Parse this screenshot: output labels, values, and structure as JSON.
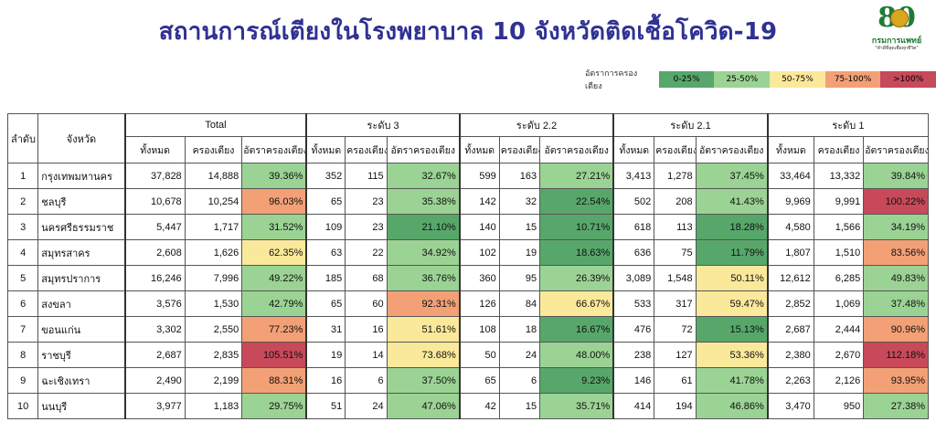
{
  "title": "สถานการณ์เตียงในโรงพยาบาล 10 จังหวัดติดเชื้อโควิด-19",
  "logo": {
    "numeral": "80",
    "name": "กรมการแพทย์",
    "tagline": "\"ทำดีที่สุดเพื่อทุกชีวิต\""
  },
  "legend": {
    "label": "อัตราการครองเตียง",
    "items": [
      {
        "label": "0-25%",
        "color": "#57a76b"
      },
      {
        "label": "25-50%",
        "color": "#9bd394"
      },
      {
        "label": "50-75%",
        "color": "#fbe99b"
      },
      {
        "label": "75-100%",
        "color": "#f3a076"
      },
      {
        "label": ">100%",
        "color": "#c7495a"
      }
    ]
  },
  "table": {
    "headers": {
      "rank": "ลำดับ",
      "province": "จังหวัด",
      "groups": [
        "Total",
        "ระดับ 3",
        "ระดับ 2.2",
        "ระดับ 2.1",
        "ระดับ 1"
      ],
      "sub": [
        "ทั้งหมด",
        "ครองเตียง",
        "อัตราครองเตียง"
      ]
    },
    "rows": [
      {
        "rank": "1",
        "province": "กรุงเทพมหานคร",
        "cells": [
          [
            "37,828",
            "14,888",
            "39.36%"
          ],
          [
            "352",
            "115",
            "32.67%"
          ],
          [
            "599",
            "163",
            "27.21%"
          ],
          [
            "3,413",
            "1,278",
            "37.45%"
          ],
          [
            "33,464",
            "13,332",
            "39.84%"
          ]
        ]
      },
      {
        "rank": "2",
        "province": "ชลบุรี",
        "cells": [
          [
            "10,678",
            "10,254",
            "96.03%"
          ],
          [
            "65",
            "23",
            "35.38%"
          ],
          [
            "142",
            "32",
            "22.54%"
          ],
          [
            "502",
            "208",
            "41.43%"
          ],
          [
            "9,969",
            "9,991",
            "100.22%"
          ]
        ]
      },
      {
        "rank": "3",
        "province": "นครศรีธรรมราช",
        "cells": [
          [
            "5,447",
            "1,717",
            "31.52%"
          ],
          [
            "109",
            "23",
            "21.10%"
          ],
          [
            "140",
            "15",
            "10.71%"
          ],
          [
            "618",
            "113",
            "18.28%"
          ],
          [
            "4,580",
            "1,566",
            "34.19%"
          ]
        ]
      },
      {
        "rank": "4",
        "province": "สมุทรสาคร",
        "cells": [
          [
            "2,608",
            "1,626",
            "62.35%"
          ],
          [
            "63",
            "22",
            "34.92%"
          ],
          [
            "102",
            "19",
            "18.63%"
          ],
          [
            "636",
            "75",
            "11.79%"
          ],
          [
            "1,807",
            "1,510",
            "83.56%"
          ]
        ]
      },
      {
        "rank": "5",
        "province": "สมุทรปราการ",
        "cells": [
          [
            "16,246",
            "7,996",
            "49.22%"
          ],
          [
            "185",
            "68",
            "36.76%"
          ],
          [
            "360",
            "95",
            "26.39%"
          ],
          [
            "3,089",
            "1,548",
            "50.11%"
          ],
          [
            "12,612",
            "6,285",
            "49.83%"
          ]
        ]
      },
      {
        "rank": "6",
        "province": "สงขลา",
        "cells": [
          [
            "3,576",
            "1,530",
            "42.79%"
          ],
          [
            "65",
            "60",
            "92.31%"
          ],
          [
            "126",
            "84",
            "66.67%"
          ],
          [
            "533",
            "317",
            "59.47%"
          ],
          [
            "2,852",
            "1,069",
            "37.48%"
          ]
        ]
      },
      {
        "rank": "7",
        "province": "ขอนแก่น",
        "cells": [
          [
            "3,302",
            "2,550",
            "77.23%"
          ],
          [
            "31",
            "16",
            "51.61%"
          ],
          [
            "108",
            "18",
            "16.67%"
          ],
          [
            "476",
            "72",
            "15.13%"
          ],
          [
            "2,687",
            "2,444",
            "90.96%"
          ]
        ]
      },
      {
        "rank": "8",
        "province": "ราชบุรี",
        "cells": [
          [
            "2,687",
            "2,835",
            "105.51%"
          ],
          [
            "19",
            "14",
            "73.68%"
          ],
          [
            "50",
            "24",
            "48.00%"
          ],
          [
            "238",
            "127",
            "53.36%"
          ],
          [
            "2,380",
            "2,670",
            "112.18%"
          ]
        ]
      },
      {
        "rank": "9",
        "province": "ฉะเชิงเทรา",
        "cells": [
          [
            "2,490",
            "2,199",
            "88.31%"
          ],
          [
            "16",
            "6",
            "37.50%"
          ],
          [
            "65",
            "6",
            "9.23%"
          ],
          [
            "146",
            "61",
            "41.78%"
          ],
          [
            "2,263",
            "2,126",
            "93.95%"
          ]
        ]
      },
      {
        "rank": "10",
        "province": "นนบุรี",
        "cells": [
          [
            "3,977",
            "1,183",
            "29.75%"
          ],
          [
            "51",
            "24",
            "47.06%"
          ],
          [
            "42",
            "15",
            "35.71%"
          ],
          [
            "414",
            "194",
            "46.86%"
          ],
          [
            "3,470",
            "950",
            "27.38%"
          ]
        ]
      }
    ]
  }
}
